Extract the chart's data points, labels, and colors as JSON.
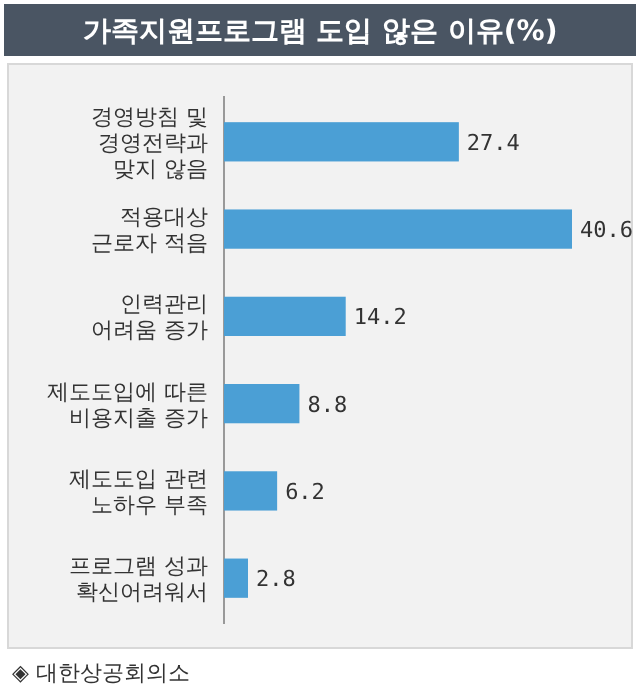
{
  "chart_data": {
    "type": "bar",
    "orientation": "horizontal",
    "title": "가족지원프로그램 도입 않은 이유(%)",
    "categories": [
      "경영방침 및\n경영전략과\n맞지 않음",
      "적용대상\n근로자 적음",
      "인력관리\n어려움 증가",
      "제도도입에 따른\n비용지출 증가",
      "제도도입 관련\n노하우 부족",
      "프로그램 성과\n확신어려워서"
    ],
    "values": [
      27.4,
      40.6,
      14.2,
      8.8,
      6.2,
      2.8
    ],
    "color": "#4b9fd5",
    "data_labels": true,
    "tick_labels": "y",
    "annotations": [
      "◈ 대한상공회의소"
    ]
  }
}
